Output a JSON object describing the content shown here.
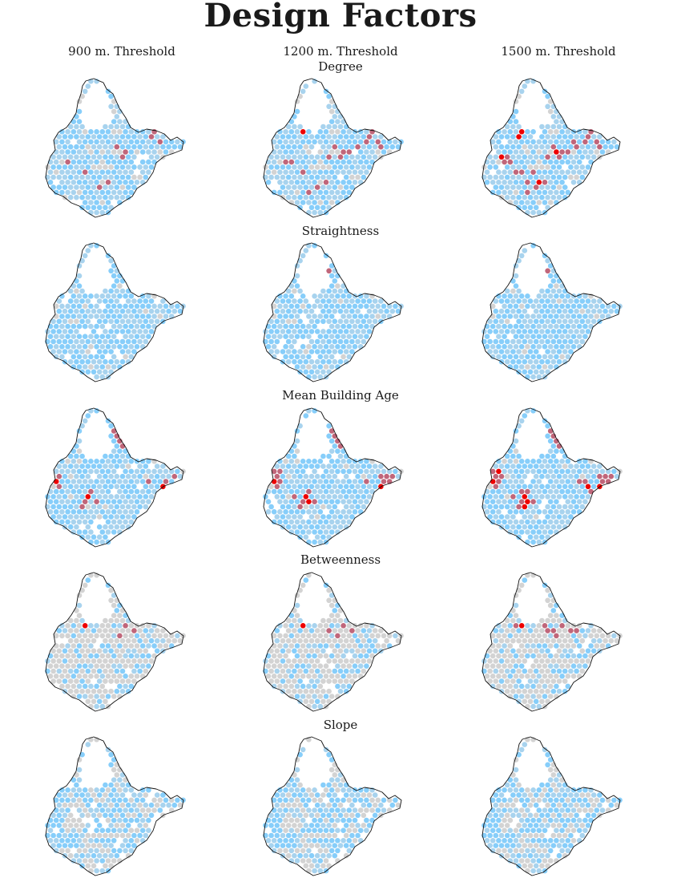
{
  "figure": {
    "title": "Design Factors",
    "columns": [
      "900 m. Threshold",
      "1200 m. Threshold",
      "1500 m. Threshold"
    ],
    "rows": [
      {
        "label": "Degree",
        "hot": [
          [
            45,
            18,
            2
          ],
          [
            72,
            45,
            3
          ],
          [
            38,
            70,
            4
          ],
          [
            52,
            50,
            3
          ],
          [
            20,
            55,
            2
          ],
          [
            65,
            30,
            2
          ],
          [
            30,
            40,
            2
          ],
          [
            80,
            60,
            2
          ]
        ],
        "hot_intensity": 0.55,
        "grey_share": 0.12
      },
      {
        "label": "Straightness",
        "hot": [
          [
            10,
            40,
            2
          ],
          [
            75,
            60,
            3
          ],
          [
            30,
            80,
            2
          ],
          [
            50,
            20,
            2
          ],
          [
            85,
            55,
            2
          ]
        ],
        "hot_intensity": 0.35,
        "grey_share": 0.05
      },
      {
        "label": "Mean Building Age",
        "hot": [
          [
            80,
            55,
            4
          ],
          [
            15,
            50,
            3
          ],
          [
            55,
            20,
            3
          ],
          [
            30,
            65,
            3
          ],
          [
            70,
            30,
            2
          ]
        ],
        "hot_intensity": 0.75,
        "grey_share": 0.05
      },
      {
        "label": "Betweenness",
        "hot": [
          [
            48,
            40,
            3
          ],
          [
            30,
            38,
            2
          ],
          [
            62,
            42,
            2
          ]
        ],
        "hot_intensity": 0.6,
        "grey_share": 0.62
      },
      {
        "label": "Slope",
        "hot": [
          [
            20,
            10,
            2
          ],
          [
            55,
            15,
            2
          ],
          [
            75,
            25,
            2
          ],
          [
            30,
            45,
            1
          ]
        ],
        "hot_intensity": 0.25,
        "grey_share": 0.3
      }
    ],
    "legend_colors": {
      "grey": "#d3d3d3",
      "light_blue": "#a8d3ee",
      "blue": "#87cefa",
      "mauve": "#c0667a",
      "red": "#ee0000"
    }
  }
}
